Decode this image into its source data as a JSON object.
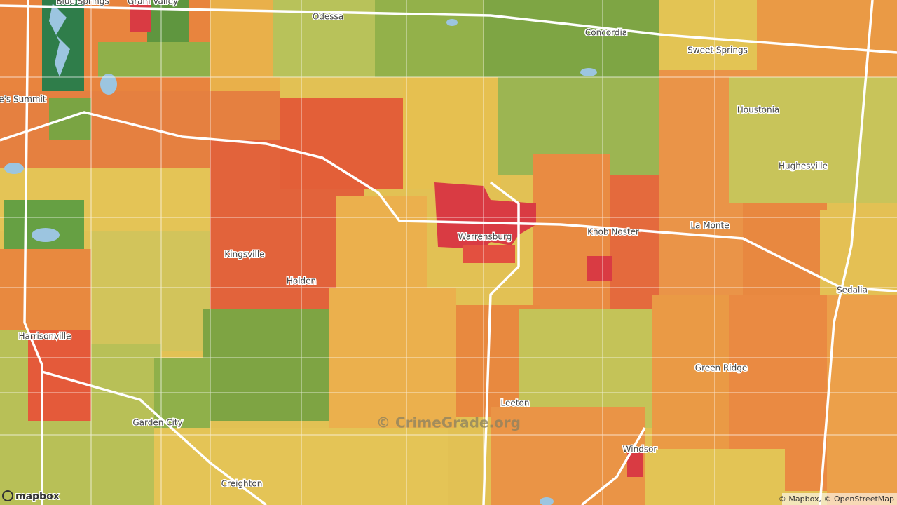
{
  "places": [
    "Blue Springs",
    "Grain Valley",
    "Odessa",
    "Concordia",
    "Sweet Springs",
    "Lee's Summit",
    "Houstonia",
    "Hughesville",
    "Kingsville",
    "Warrensburg",
    "Knob Noster",
    "La Monte",
    "Holden",
    "Sedalia",
    "Harrisonville",
    "Green Ridge",
    "Leeton",
    "Garden City",
    "Windsor",
    "Creighton"
  ],
  "watermark": "© CrimeGrade.org",
  "logo": "mapbox",
  "attribution": "© Mapbox, © OpenStreetMap"
}
